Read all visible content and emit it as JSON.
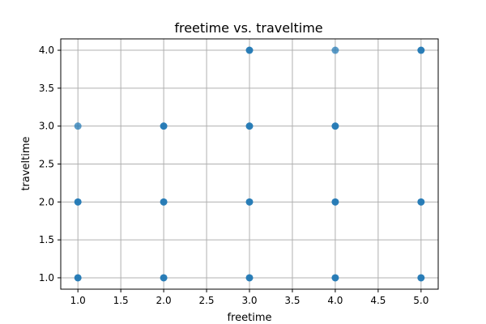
{
  "chart_data": {
    "type": "scatter",
    "title": "freetime vs. traveltime",
    "xlabel": "freetime",
    "ylabel": "traveltime",
    "xlim": [
      0.8,
      5.2
    ],
    "ylim": [
      0.85,
      4.15
    ],
    "xticks": [
      1.0,
      1.5,
      2.0,
      2.5,
      3.0,
      3.5,
      4.0,
      4.5,
      5.0
    ],
    "yticks": [
      1.0,
      1.5,
      2.0,
      2.5,
      3.0,
      3.5,
      4.0
    ],
    "xtick_labels": [
      "1.0",
      "1.5",
      "2.0",
      "2.5",
      "3.0",
      "3.5",
      "4.0",
      "4.5",
      "5.0"
    ],
    "ytick_labels": [
      "1.0",
      "1.5",
      "2.0",
      "2.5",
      "3.0",
      "3.5",
      "4.0"
    ],
    "grid": true,
    "marker_color": "#1f77b4",
    "points": [
      {
        "x": 1,
        "y": 1,
        "dense": true
      },
      {
        "x": 1,
        "y": 2,
        "dense": true
      },
      {
        "x": 1,
        "y": 3,
        "dense": false
      },
      {
        "x": 2,
        "y": 1,
        "dense": true
      },
      {
        "x": 2,
        "y": 2,
        "dense": true
      },
      {
        "x": 2,
        "y": 3,
        "dense": true
      },
      {
        "x": 3,
        "y": 1,
        "dense": true
      },
      {
        "x": 3,
        "y": 2,
        "dense": true
      },
      {
        "x": 3,
        "y": 3,
        "dense": true
      },
      {
        "x": 3,
        "y": 4,
        "dense": true
      },
      {
        "x": 4,
        "y": 1,
        "dense": true
      },
      {
        "x": 4,
        "y": 2,
        "dense": true
      },
      {
        "x": 4,
        "y": 3,
        "dense": true
      },
      {
        "x": 4,
        "y": 4,
        "dense": false
      },
      {
        "x": 5,
        "y": 1,
        "dense": true
      },
      {
        "x": 5,
        "y": 2,
        "dense": true
      },
      {
        "x": 5,
        "y": 4,
        "dense": true
      }
    ]
  }
}
